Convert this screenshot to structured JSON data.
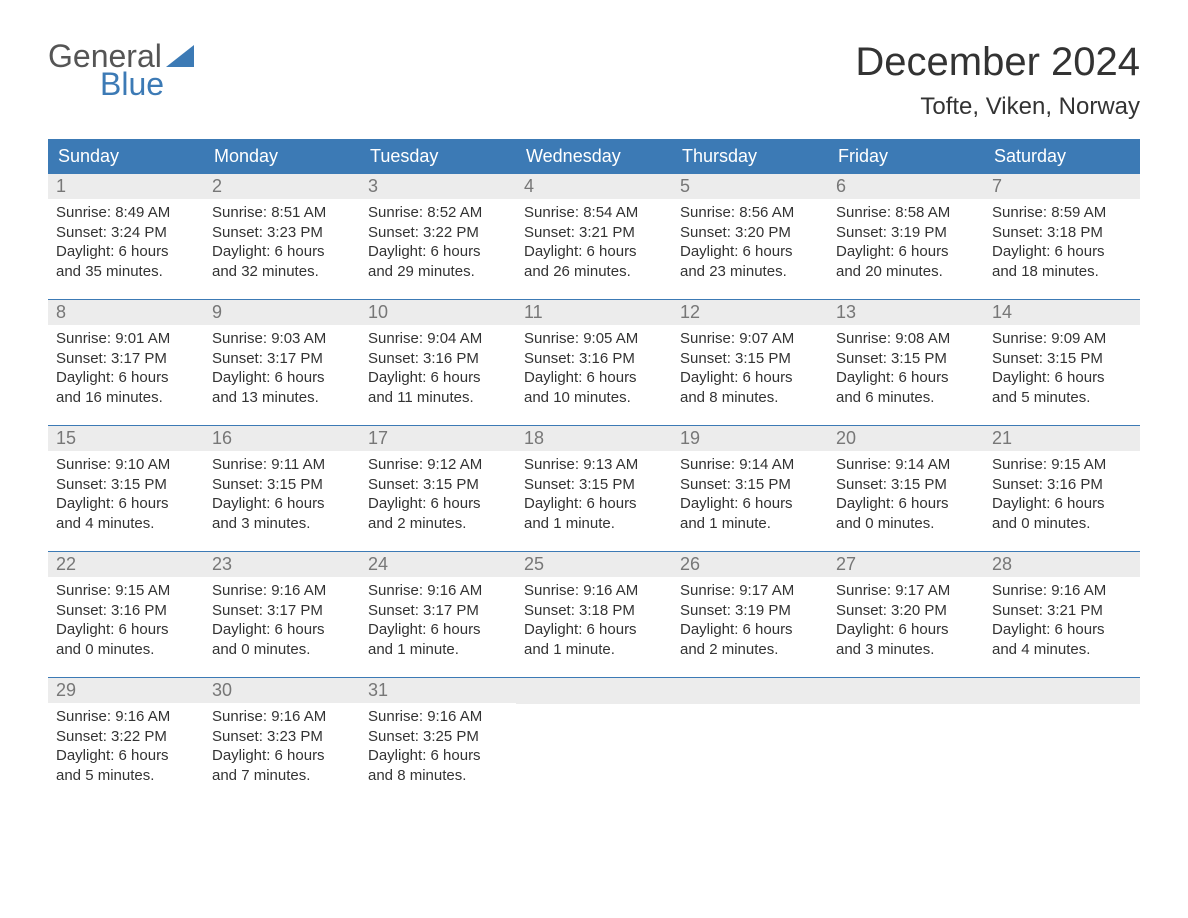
{
  "logo": {
    "general": "General",
    "blue": "Blue"
  },
  "title": "December 2024",
  "location": "Tofte, Viken, Norway",
  "colors": {
    "header_bg": "#3c7ab5",
    "header_text": "#ffffff",
    "daynum_bg": "#ececec",
    "daynum_text": "#777777",
    "text": "#333333",
    "border": "#3c7ab5",
    "logo_blue": "#3c7ab5",
    "logo_general": "#555555",
    "background": "#ffffff"
  },
  "dayHeaders": [
    "Sunday",
    "Monday",
    "Tuesday",
    "Wednesday",
    "Thursday",
    "Friday",
    "Saturday"
  ],
  "days": [
    {
      "n": "1",
      "sunrise": "Sunrise: 8:49 AM",
      "sunset": "Sunset: 3:24 PM",
      "d1": "Daylight: 6 hours",
      "d2": "and 35 minutes."
    },
    {
      "n": "2",
      "sunrise": "Sunrise: 8:51 AM",
      "sunset": "Sunset: 3:23 PM",
      "d1": "Daylight: 6 hours",
      "d2": "and 32 minutes."
    },
    {
      "n": "3",
      "sunrise": "Sunrise: 8:52 AM",
      "sunset": "Sunset: 3:22 PM",
      "d1": "Daylight: 6 hours",
      "d2": "and 29 minutes."
    },
    {
      "n": "4",
      "sunrise": "Sunrise: 8:54 AM",
      "sunset": "Sunset: 3:21 PM",
      "d1": "Daylight: 6 hours",
      "d2": "and 26 minutes."
    },
    {
      "n": "5",
      "sunrise": "Sunrise: 8:56 AM",
      "sunset": "Sunset: 3:20 PM",
      "d1": "Daylight: 6 hours",
      "d2": "and 23 minutes."
    },
    {
      "n": "6",
      "sunrise": "Sunrise: 8:58 AM",
      "sunset": "Sunset: 3:19 PM",
      "d1": "Daylight: 6 hours",
      "d2": "and 20 minutes."
    },
    {
      "n": "7",
      "sunrise": "Sunrise: 8:59 AM",
      "sunset": "Sunset: 3:18 PM",
      "d1": "Daylight: 6 hours",
      "d2": "and 18 minutes."
    },
    {
      "n": "8",
      "sunrise": "Sunrise: 9:01 AM",
      "sunset": "Sunset: 3:17 PM",
      "d1": "Daylight: 6 hours",
      "d2": "and 16 minutes."
    },
    {
      "n": "9",
      "sunrise": "Sunrise: 9:03 AM",
      "sunset": "Sunset: 3:17 PM",
      "d1": "Daylight: 6 hours",
      "d2": "and 13 minutes."
    },
    {
      "n": "10",
      "sunrise": "Sunrise: 9:04 AM",
      "sunset": "Sunset: 3:16 PM",
      "d1": "Daylight: 6 hours",
      "d2": "and 11 minutes."
    },
    {
      "n": "11",
      "sunrise": "Sunrise: 9:05 AM",
      "sunset": "Sunset: 3:16 PM",
      "d1": "Daylight: 6 hours",
      "d2": "and 10 minutes."
    },
    {
      "n": "12",
      "sunrise": "Sunrise: 9:07 AM",
      "sunset": "Sunset: 3:15 PM",
      "d1": "Daylight: 6 hours",
      "d2": "and 8 minutes."
    },
    {
      "n": "13",
      "sunrise": "Sunrise: 9:08 AM",
      "sunset": "Sunset: 3:15 PM",
      "d1": "Daylight: 6 hours",
      "d2": "and 6 minutes."
    },
    {
      "n": "14",
      "sunrise": "Sunrise: 9:09 AM",
      "sunset": "Sunset: 3:15 PM",
      "d1": "Daylight: 6 hours",
      "d2": "and 5 minutes."
    },
    {
      "n": "15",
      "sunrise": "Sunrise: 9:10 AM",
      "sunset": "Sunset: 3:15 PM",
      "d1": "Daylight: 6 hours",
      "d2": "and 4 minutes."
    },
    {
      "n": "16",
      "sunrise": "Sunrise: 9:11 AM",
      "sunset": "Sunset: 3:15 PM",
      "d1": "Daylight: 6 hours",
      "d2": "and 3 minutes."
    },
    {
      "n": "17",
      "sunrise": "Sunrise: 9:12 AM",
      "sunset": "Sunset: 3:15 PM",
      "d1": "Daylight: 6 hours",
      "d2": "and 2 minutes."
    },
    {
      "n": "18",
      "sunrise": "Sunrise: 9:13 AM",
      "sunset": "Sunset: 3:15 PM",
      "d1": "Daylight: 6 hours",
      "d2": "and 1 minute."
    },
    {
      "n": "19",
      "sunrise": "Sunrise: 9:14 AM",
      "sunset": "Sunset: 3:15 PM",
      "d1": "Daylight: 6 hours",
      "d2": "and 1 minute."
    },
    {
      "n": "20",
      "sunrise": "Sunrise: 9:14 AM",
      "sunset": "Sunset: 3:15 PM",
      "d1": "Daylight: 6 hours",
      "d2": "and 0 minutes."
    },
    {
      "n": "21",
      "sunrise": "Sunrise: 9:15 AM",
      "sunset": "Sunset: 3:16 PM",
      "d1": "Daylight: 6 hours",
      "d2": "and 0 minutes."
    },
    {
      "n": "22",
      "sunrise": "Sunrise: 9:15 AM",
      "sunset": "Sunset: 3:16 PM",
      "d1": "Daylight: 6 hours",
      "d2": "and 0 minutes."
    },
    {
      "n": "23",
      "sunrise": "Sunrise: 9:16 AM",
      "sunset": "Sunset: 3:17 PM",
      "d1": "Daylight: 6 hours",
      "d2": "and 0 minutes."
    },
    {
      "n": "24",
      "sunrise": "Sunrise: 9:16 AM",
      "sunset": "Sunset: 3:17 PM",
      "d1": "Daylight: 6 hours",
      "d2": "and 1 minute."
    },
    {
      "n": "25",
      "sunrise": "Sunrise: 9:16 AM",
      "sunset": "Sunset: 3:18 PM",
      "d1": "Daylight: 6 hours",
      "d2": "and 1 minute."
    },
    {
      "n": "26",
      "sunrise": "Sunrise: 9:17 AM",
      "sunset": "Sunset: 3:19 PM",
      "d1": "Daylight: 6 hours",
      "d2": "and 2 minutes."
    },
    {
      "n": "27",
      "sunrise": "Sunrise: 9:17 AM",
      "sunset": "Sunset: 3:20 PM",
      "d1": "Daylight: 6 hours",
      "d2": "and 3 minutes."
    },
    {
      "n": "28",
      "sunrise": "Sunrise: 9:16 AM",
      "sunset": "Sunset: 3:21 PM",
      "d1": "Daylight: 6 hours",
      "d2": "and 4 minutes."
    },
    {
      "n": "29",
      "sunrise": "Sunrise: 9:16 AM",
      "sunset": "Sunset: 3:22 PM",
      "d1": "Daylight: 6 hours",
      "d2": "and 5 minutes."
    },
    {
      "n": "30",
      "sunrise": "Sunrise: 9:16 AM",
      "sunset": "Sunset: 3:23 PM",
      "d1": "Daylight: 6 hours",
      "d2": "and 7 minutes."
    },
    {
      "n": "31",
      "sunrise": "Sunrise: 9:16 AM",
      "sunset": "Sunset: 3:25 PM",
      "d1": "Daylight: 6 hours",
      "d2": "and 8 minutes."
    }
  ],
  "trailingEmpty": 4
}
